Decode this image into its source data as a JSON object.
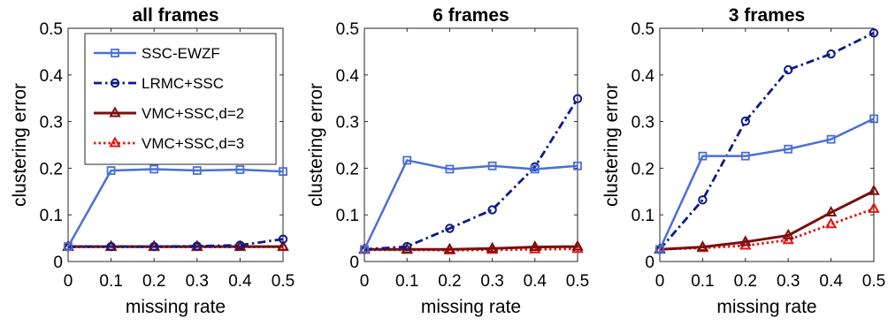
{
  "chart_data": [
    {
      "type": "line",
      "title": "all frames",
      "xlabel": "missing rate",
      "ylabel": "clustering error",
      "x": [
        0,
        0.1,
        0.2,
        0.3,
        0.4,
        0.5
      ],
      "xlim": [
        0,
        0.5
      ],
      "ylim": [
        0,
        0.5
      ],
      "xticks": [
        "0",
        "0.1",
        "0.2",
        "0.3",
        "0.4",
        "0.5"
      ],
      "yticks": [
        "0",
        "0.1",
        "0.2",
        "0.3",
        "0.4",
        "0.5"
      ],
      "grid": false,
      "legend_position": "top-right",
      "series": [
        {
          "name": "SSC-EWZF",
          "values": [
            0.032,
            0.195,
            0.198,
            0.195,
            0.197,
            0.193
          ]
        },
        {
          "name": "LRMC+SSC",
          "values": [
            0.032,
            0.032,
            0.032,
            0.033,
            0.035,
            0.048
          ]
        },
        {
          "name": "VMC+SSC,d=2",
          "values": [
            0.032,
            0.032,
            0.032,
            0.032,
            0.032,
            0.032
          ]
        },
        {
          "name": "VMC+SSC,d=3",
          "values": [
            0.031,
            0.031,
            0.031,
            0.031,
            0.031,
            0.031
          ]
        }
      ]
    },
    {
      "type": "line",
      "title": "6 frames",
      "xlabel": "missing rate",
      "ylabel": "clustering error",
      "x": [
        0,
        0.1,
        0.2,
        0.3,
        0.4,
        0.5
      ],
      "xlim": [
        0,
        0.5
      ],
      "ylim": [
        0,
        0.5
      ],
      "xticks": [
        "0",
        "0.1",
        "0.2",
        "0.3",
        "0.4",
        "0.5"
      ],
      "yticks": [
        "0",
        "0.1",
        "0.2",
        "0.3",
        "0.4",
        "0.5"
      ],
      "grid": false,
      "series": [
        {
          "name": "SSC-EWZF",
          "values": [
            0.026,
            0.217,
            0.198,
            0.205,
            0.198,
            0.205
          ]
        },
        {
          "name": "LRMC+SSC",
          "values": [
            0.026,
            0.032,
            0.071,
            0.111,
            0.203,
            0.349
          ]
        },
        {
          "name": "VMC+SSC,d=2",
          "values": [
            0.026,
            0.026,
            0.026,
            0.028,
            0.031,
            0.032
          ]
        },
        {
          "name": "VMC+SSC,d=3",
          "values": [
            0.025,
            0.025,
            0.024,
            0.025,
            0.026,
            0.027
          ]
        }
      ]
    },
    {
      "type": "line",
      "title": "3 frames",
      "xlabel": "missing rate",
      "ylabel": "clustering error",
      "x": [
        0,
        0.1,
        0.2,
        0.3,
        0.4,
        0.5
      ],
      "xlim": [
        0,
        0.5
      ],
      "ylim": [
        0,
        0.5
      ],
      "xticks": [
        "0",
        "0.1",
        "0.2",
        "0.3",
        "0.4",
        "0.5"
      ],
      "yticks": [
        "0",
        "0.1",
        "0.2",
        "0.3",
        "0.4",
        "0.5"
      ],
      "grid": false,
      "series": [
        {
          "name": "SSC-EWZF",
          "values": [
            0.026,
            0.226,
            0.226,
            0.241,
            0.262,
            0.306
          ]
        },
        {
          "name": "LRMC+SSC",
          "values": [
            0.026,
            0.132,
            0.301,
            0.411,
            0.445,
            0.49
          ]
        },
        {
          "name": "VMC+SSC,d=2",
          "values": [
            0.026,
            0.031,
            0.042,
            0.056,
            0.105,
            0.151
          ]
        },
        {
          "name": "VMC+SSC,d=3",
          "values": [
            0.026,
            0.029,
            0.034,
            0.046,
            0.08,
            0.113
          ]
        }
      ]
    }
  ],
  "series_style": [
    {
      "color": "#4a6fd8",
      "dash": "none",
      "marker": "square",
      "width": 2.5
    },
    {
      "color": "#0d1a8a",
      "dash": "9,4,2.5,4",
      "marker": "circle",
      "width": 2.8
    },
    {
      "color": "#7a0f0f",
      "dash": "none",
      "marker": "triangle",
      "width": 3
    },
    {
      "color": "#e8120f",
      "dash": "2.5,3",
      "marker": "triangle",
      "width": 2.8
    }
  ]
}
